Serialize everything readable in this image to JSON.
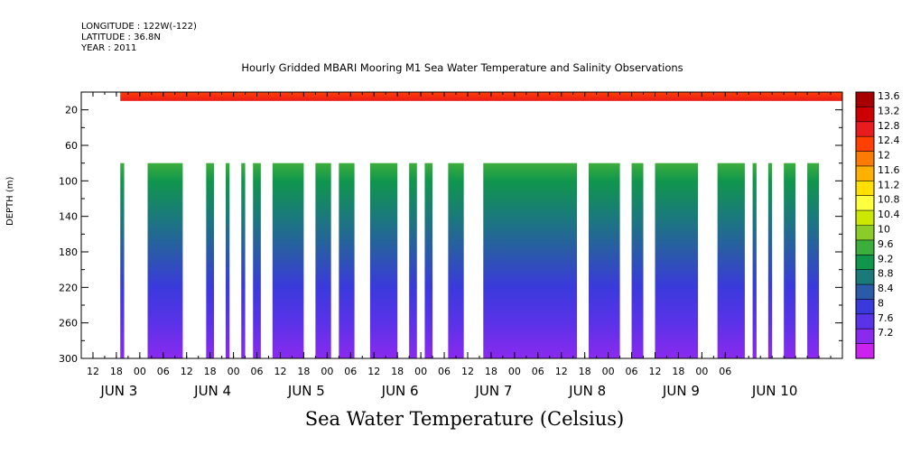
{
  "header": {
    "longitude": "LONGITUDE : 122W(-122)",
    "latitude": "LATITUDE : 36.8N",
    "year": "YEAR : 2011"
  },
  "chart_data": {
    "type": "heatmap",
    "title": "Hourly Gridded MBARI Mooring M1 Sea Water Temperature and Salinity Observations",
    "xlabel": "Sea Water Temperature (Celsius)",
    "ylabel": "DEPTH (m)",
    "ylim": [
      300,
      0
    ],
    "yticks": [
      20,
      60,
      100,
      140,
      180,
      220,
      260,
      300
    ],
    "xlim_hours": [
      0,
      195
    ],
    "hour_ticks": [
      "12",
      "18",
      "00",
      "06",
      "12",
      "18",
      "00",
      "06",
      "12",
      "18",
      "00",
      "06",
      "12",
      "18",
      "00",
      "06",
      "12",
      "18",
      "00",
      "06",
      "12",
      "18",
      "00",
      "06",
      "12",
      "18",
      "00",
      "06"
    ],
    "day_labels": [
      "JUN  3",
      "JUN  4",
      "JUN  5",
      "JUN  6",
      "JUN  7",
      "JUN  8",
      "JUN  9",
      "JUN 10"
    ],
    "colorbar": {
      "levels": [
        "13.6",
        "13.2",
        "12.8",
        "12.4",
        "12",
        "11.6",
        "11.2",
        "10.8",
        "10.4",
        "10",
        "9.6",
        "9.2",
        "8.8",
        "8.4",
        "8",
        "7.6",
        "7.2"
      ],
      "colors": [
        "#a80000",
        "#cc0000",
        "#e81c1c",
        "#ff4000",
        "#ff7a00",
        "#ffb000",
        "#ffe000",
        "#ffff40",
        "#cce800",
        "#8ccc28",
        "#3cae3c",
        "#10964c",
        "#1a7a7a",
        "#2a5aa8",
        "#3a3adc",
        "#5a32e8",
        "#8a2aee",
        "#cc22f0"
      ]
    },
    "surface_layer": {
      "depth_m": [
        0,
        10
      ],
      "temperature_c": [
        12.6,
        13.4
      ]
    },
    "deep_layer": {
      "depth_m": [
        80,
        300
      ],
      "temperature_profile": {
        "depth_m": [
          80,
          100,
          140,
          180,
          220,
          260,
          300
        ],
        "temperature_c": [
          9.6,
          9.2,
          8.8,
          8.4,
          8.0,
          7.6,
          7.2
        ]
      },
      "data_intervals_hours": [
        [
          10,
          11
        ],
        [
          17,
          26
        ],
        [
          32,
          34
        ],
        [
          37,
          38
        ],
        [
          41,
          42
        ],
        [
          44,
          46
        ],
        [
          49,
          57
        ],
        [
          60,
          64
        ],
        [
          66,
          70
        ],
        [
          74,
          81
        ],
        [
          84,
          86
        ],
        [
          88,
          90
        ],
        [
          94,
          98
        ],
        [
          103,
          127
        ],
        [
          130,
          138
        ],
        [
          141,
          144
        ],
        [
          147,
          158
        ],
        [
          163,
          170
        ],
        [
          172,
          173
        ],
        [
          176,
          177
        ],
        [
          180,
          183
        ],
        [
          186,
          189
        ]
      ]
    }
  }
}
